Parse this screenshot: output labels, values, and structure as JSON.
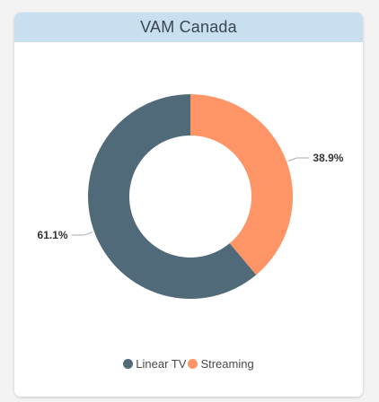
{
  "header": {
    "title": "VAM Canada"
  },
  "colors": {
    "linear_tv": "#506a7a",
    "streaming": "#ff9466",
    "header_bg": "#c8dff0"
  },
  "chart_data": {
    "type": "pie",
    "variant": "donut",
    "title": "VAM Canada",
    "slices": [
      {
        "name": "Linear TV",
        "value": 61.1,
        "label": "61.1%",
        "color": "#506a7a"
      },
      {
        "name": "Streaming",
        "value": 38.9,
        "label": "38.9%",
        "color": "#ff9466"
      }
    ],
    "legend_position": "bottom"
  },
  "legend": {
    "items": [
      {
        "label": "Linear TV",
        "color": "#506a7a"
      },
      {
        "label": "Streaming",
        "color": "#ff9466"
      }
    ]
  }
}
